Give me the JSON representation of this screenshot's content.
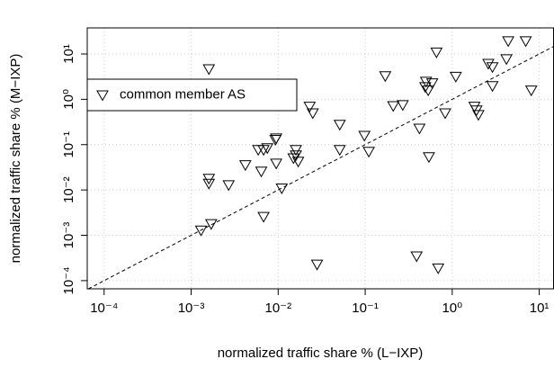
{
  "chart_data": {
    "type": "scatter",
    "xlabel": "normalized traffic share % (L−IXP)",
    "ylabel": "normalized traffic share % (M−IXP)",
    "log_x": true,
    "log_y": true,
    "grid": true,
    "diagonal": true,
    "legend_position": "left",
    "xlim": [
      6.4e-05,
      14.6
    ],
    "ylim": [
      6.6e-05,
      37.6
    ],
    "xticks": [
      {
        "value": 0.0001,
        "label": "10⁻⁴"
      },
      {
        "value": 0.001,
        "label": "10⁻³"
      },
      {
        "value": 0.01,
        "label": "10⁻²"
      },
      {
        "value": 0.1,
        "label": "10⁻¹"
      },
      {
        "value": 1,
        "label": "10⁰"
      },
      {
        "value": 10,
        "label": "10¹"
      }
    ],
    "yticks": [
      {
        "value": 0.0001,
        "label": "10⁻⁴"
      },
      {
        "value": 0.001,
        "label": "10⁻³"
      },
      {
        "value": 0.01,
        "label": "10⁻²"
      },
      {
        "value": 0.1,
        "label": "10⁻¹"
      },
      {
        "value": 1,
        "label": "10⁰"
      },
      {
        "value": 10,
        "label": "10¹"
      }
    ],
    "series": [
      {
        "name": "common member AS",
        "color": "#000000",
        "x": [
          0.0016,
          0.0013,
          0.0016,
          0.0016,
          0.0017,
          0.0027,
          0.0042,
          0.0059,
          0.0068,
          0.0075,
          0.0064,
          0.0068,
          0.0093,
          0.0095,
          0.0095,
          0.011,
          0.015,
          0.016,
          0.017,
          0.016,
          0.028,
          0.025,
          0.023,
          0.051,
          0.051,
          0.17,
          0.21,
          0.098,
          0.11,
          0.27,
          0.42,
          0.54,
          0.39,
          0.69,
          0.66,
          0.5,
          0.49,
          0.53,
          0.59,
          1.1,
          0.83,
          1.8,
          1.9,
          2.0,
          2.6,
          2.9,
          2.9,
          4.2,
          4.4,
          7.0,
          8.1
        ],
        "values": [
          4.7,
          0.0013,
          0.018,
          0.014,
          0.0018,
          0.013,
          0.036,
          0.078,
          0.078,
          0.085,
          0.026,
          0.0026,
          0.13,
          0.14,
          0.039,
          0.011,
          0.051,
          0.078,
          0.043,
          0.059,
          0.00023,
          0.5,
          0.7,
          0.28,
          0.078,
          3.3,
          0.72,
          0.16,
          0.071,
          0.76,
          0.23,
          0.054,
          0.00035,
          0.00019,
          11,
          2.5,
          1.9,
          1.6,
          2.3,
          3.2,
          0.5,
          0.7,
          0.58,
          0.46,
          6.2,
          5.2,
          2.0,
          7.8,
          19.5,
          19.5,
          1.6
        ]
      }
    ]
  }
}
